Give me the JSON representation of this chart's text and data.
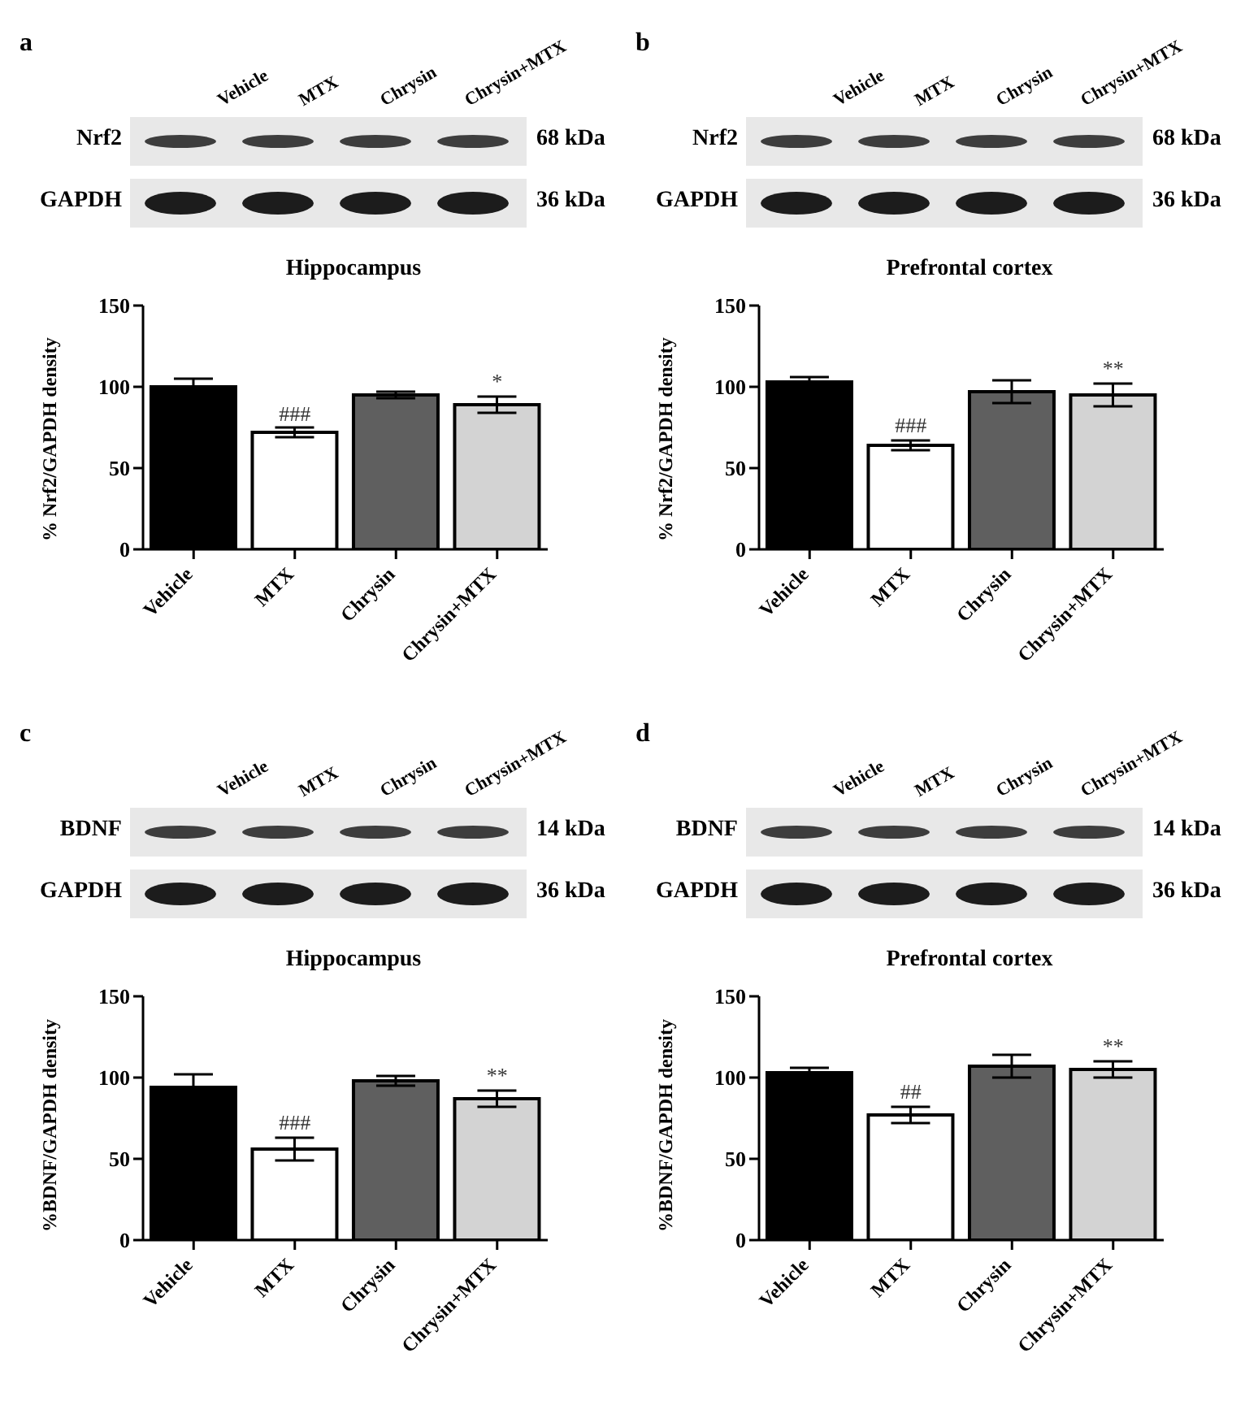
{
  "chart_data": [
    {
      "type": "bar",
      "title": "Hippocampus",
      "ylabel": "% Nrf2/GAPDH density",
      "categories": [
        "Vehicle",
        "MTX",
        "Chrysin",
        "Chrysin+MTX"
      ],
      "values": [
        100,
        72,
        95,
        89
      ],
      "errors": [
        5,
        3,
        2,
        5
      ],
      "colors": [
        "#000000",
        "#ffffff",
        "#5f5f5f",
        "#d3d3d3"
      ],
      "ylim": [
        0,
        150
      ],
      "yticks": [
        0,
        50,
        100,
        150
      ],
      "grid": false,
      "legend": false,
      "annotations": [
        "a",
        "Vehicle",
        "MTX",
        "Chrysin",
        "Chrysin+MTX",
        "Nrf2",
        "68 kDa",
        "GAPDH",
        "36 kDa",
        {
          "text": "###",
          "x": "MTX",
          "y": 74
        },
        {
          "text": "*",
          "x": "Chrysin+MTX",
          "y": 94
        }
      ]
    },
    {
      "type": "bar",
      "title": "Prefrontal cortex",
      "ylabel": "% Nrf2/GAPDH density",
      "categories": [
        "Vehicle",
        "MTX",
        "Chrysin",
        "Chrysin+MTX"
      ],
      "values": [
        103,
        64,
        97,
        95
      ],
      "errors": [
        3,
        3,
        7,
        7
      ],
      "colors": [
        "#000000",
        "#ffffff",
        "#5f5f5f",
        "#d3d3d3"
      ],
      "ylim": [
        0,
        150
      ],
      "yticks": [
        0,
        50,
        100,
        150
      ],
      "grid": false,
      "legend": false,
      "annotations": [
        "b",
        "Vehicle",
        "MTX",
        "Chrysin",
        "Chrysin+MTX",
        "Nrf2",
        "68 kDa",
        "GAPDH",
        "36 kDa",
        {
          "text": "###",
          "x": "MTX",
          "y": 67
        },
        {
          "text": "**",
          "x": "Chrysin+MTX",
          "y": 102
        }
      ]
    },
    {
      "type": "bar",
      "title": "Hippocampus",
      "ylabel": "%BDNF/GAPDH density",
      "categories": [
        "Vehicle",
        "MTX",
        "Chrysin",
        "Chrysin+MTX"
      ],
      "values": [
        94,
        56,
        98,
        87
      ],
      "errors": [
        8,
        7,
        3,
        5
      ],
      "colors": [
        "#000000",
        "#ffffff",
        "#5f5f5f",
        "#d3d3d3"
      ],
      "ylim": [
        0,
        150
      ],
      "yticks": [
        0,
        50,
        100,
        150
      ],
      "grid": false,
      "legend": false,
      "annotations": [
        "c",
        "Vehicle",
        "MTX",
        "Chrysin",
        "Chrysin+MTX",
        "BDNF",
        "14 kDa",
        "GAPDH",
        "36 kDa",
        {
          "text": "###",
          "x": "MTX",
          "y": 63
        },
        {
          "text": "**",
          "x": "Chrysin+MTX",
          "y": 92
        }
      ]
    },
    {
      "type": "bar",
      "title": "Prefrontal cortex",
      "ylabel": "%BDNF/GAPDH density",
      "categories": [
        "Vehicle",
        "MTX",
        "Chrysin",
        "Chrysin+MTX"
      ],
      "values": [
        103,
        77,
        107,
        105
      ],
      "errors": [
        3,
        5,
        7,
        5
      ],
      "colors": [
        "#000000",
        "#ffffff",
        "#5f5f5f",
        "#d3d3d3"
      ],
      "ylim": [
        0,
        150
      ],
      "yticks": [
        0,
        50,
        100,
        150
      ],
      "grid": false,
      "legend": false,
      "annotations": [
        "d",
        "Vehicle",
        "MTX",
        "Chrysin",
        "Chrysin+MTX",
        "BDNF",
        "14 kDa",
        "GAPDH",
        "36 kDa",
        {
          "text": "##",
          "x": "MTX",
          "y": 82
        },
        {
          "text": "**",
          "x": "Chrysin+MTX",
          "y": 110
        }
      ]
    }
  ]
}
